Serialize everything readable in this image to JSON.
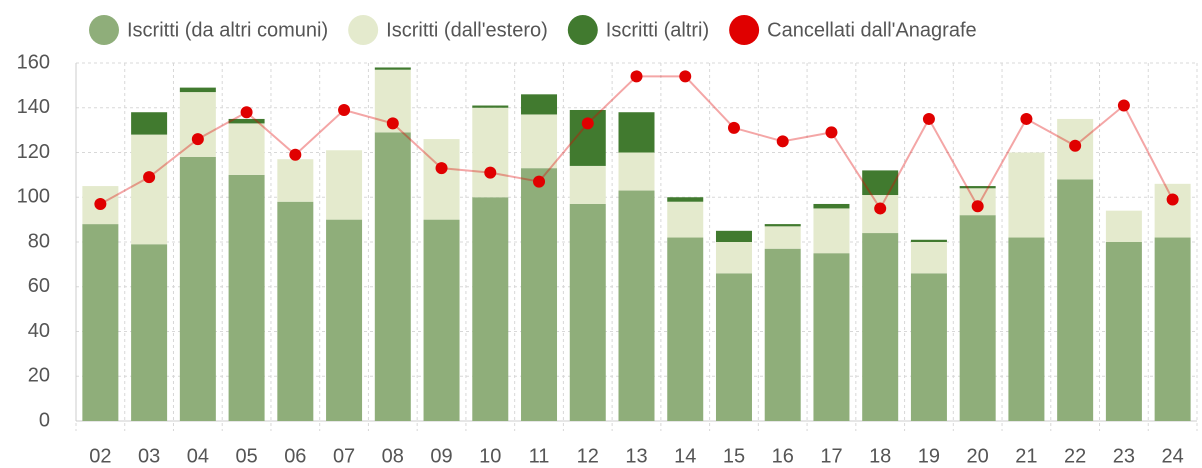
{
  "chart_data": {
    "type": "bar",
    "categories": [
      "02",
      "03",
      "04",
      "05",
      "06",
      "07",
      "08",
      "09",
      "10",
      "11",
      "12",
      "13",
      "14",
      "15",
      "16",
      "17",
      "18",
      "19",
      "20",
      "21",
      "22",
      "23",
      "24"
    ],
    "series": [
      {
        "name": "Iscritti (da altri comuni)",
        "color": "#8fae7a",
        "type": "bar",
        "values": [
          88,
          79,
          118,
          110,
          98,
          90,
          129,
          90,
          100,
          113,
          97,
          103,
          82,
          66,
          77,
          75,
          84,
          66,
          92,
          82,
          108,
          80,
          82
        ]
      },
      {
        "name": "Iscritti (dall'estero)",
        "color": "#e4eacd",
        "type": "bar",
        "values": [
          17,
          49,
          29,
          23,
          19,
          31,
          28,
          36,
          40,
          24,
          17,
          17,
          16,
          14,
          10,
          20,
          17,
          14,
          12,
          38,
          27,
          14,
          24
        ]
      },
      {
        "name": "Iscritti (altri)",
        "color": "#417a2f",
        "type": "bar",
        "values": [
          0,
          10,
          2,
          2,
          0,
          0,
          1,
          0,
          1,
          9,
          25,
          18,
          2,
          5,
          1,
          2,
          11,
          1,
          1,
          0,
          0,
          0,
          0
        ]
      },
      {
        "name": "Cancellati dall'Anagrafe",
        "color": "#e00000",
        "type": "line",
        "values": [
          97,
          109,
          126,
          138,
          119,
          139,
          133,
          113,
          111,
          107,
          133,
          154,
          154,
          131,
          125,
          129,
          95,
          135,
          96,
          135,
          123,
          141,
          99
        ]
      }
    ],
    "stacked": true,
    "ylim": [
      0,
      160
    ],
    "yticks": [
      0,
      20,
      40,
      60,
      80,
      100,
      120,
      140,
      160
    ],
    "grid": true,
    "legend": "top"
  }
}
